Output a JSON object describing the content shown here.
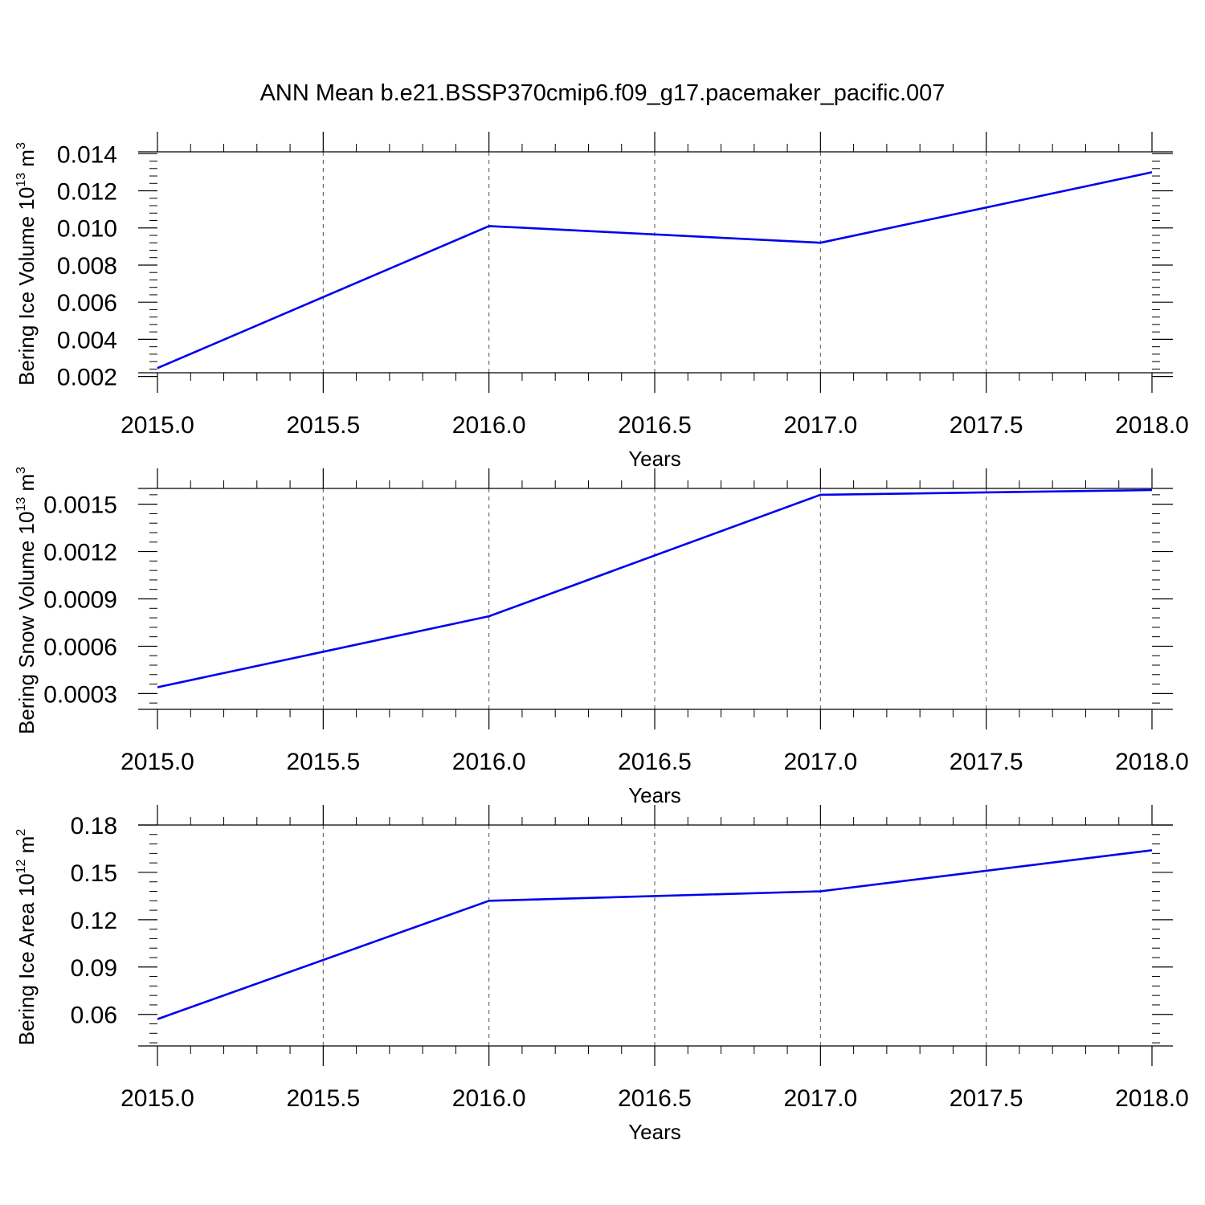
{
  "title": "ANN Mean b.e21.BSSP370cmip6.f09_g17.pacemaker_pacific.007",
  "colors": {
    "series": "#0000ee",
    "axes": "#000000",
    "grid": "#555555"
  },
  "chart_data": [
    {
      "type": "line",
      "xlabel": "Years",
      "ylabel": {
        "pre": "Bering Ice Volume 10",
        "sup": "13",
        "mid": " m",
        "sup2": "3"
      },
      "xlim": [
        2015.0,
        2018.0
      ],
      "ylim": [
        0.0022,
        0.0141
      ],
      "x_ticks": [
        "2015.0",
        "2015.5",
        "2016.0",
        "2016.5",
        "2017.0",
        "2017.5",
        "2018.0"
      ],
      "y_ticks": [
        "0.002",
        "0.004",
        "0.006",
        "0.008",
        "0.010",
        "0.012",
        "0.014"
      ],
      "grid": true,
      "series": [
        {
          "x": [
            2015,
            2016,
            2017,
            2018
          ],
          "y": [
            0.00245,
            0.0101,
            0.0092,
            0.013
          ]
        }
      ]
    },
    {
      "type": "line",
      "xlabel": "Years",
      "ylabel": {
        "pre": "Bering Snow Volume 10",
        "sup": "13",
        "mid": " m",
        "sup2": "3"
      },
      "xlim": [
        2015.0,
        2018.0
      ],
      "ylim": [
        0.0002,
        0.0016
      ],
      "x_ticks": [
        "2015.0",
        "2015.5",
        "2016.0",
        "2016.5",
        "2017.0",
        "2017.5",
        "2018.0"
      ],
      "y_ticks": [
        "0.0003",
        "0.0006",
        "0.0009",
        "0.0012",
        "0.0015"
      ],
      "grid": true,
      "series": [
        {
          "x": [
            2015,
            2016,
            2017,
            2018
          ],
          "y": [
            0.00034,
            0.00079,
            0.00156,
            0.00159
          ]
        }
      ]
    },
    {
      "type": "line",
      "xlabel": "Years",
      "ylabel": {
        "pre": "Bering Ice Area 10",
        "sup": "12",
        "mid": " m",
        "sup2": "2"
      },
      "xlim": [
        2015.0,
        2018.0
      ],
      "ylim": [
        0.04,
        0.18
      ],
      "x_ticks": [
        "2015.0",
        "2015.5",
        "2016.0",
        "2016.5",
        "2017.0",
        "2017.5",
        "2018.0"
      ],
      "y_ticks": [
        "0.06",
        "0.09",
        "0.12",
        "0.15",
        "0.18"
      ],
      "grid": true,
      "series": [
        {
          "x": [
            2015,
            2016,
            2017,
            2018
          ],
          "y": [
            0.057,
            0.132,
            0.138,
            0.164
          ]
        }
      ]
    }
  ]
}
